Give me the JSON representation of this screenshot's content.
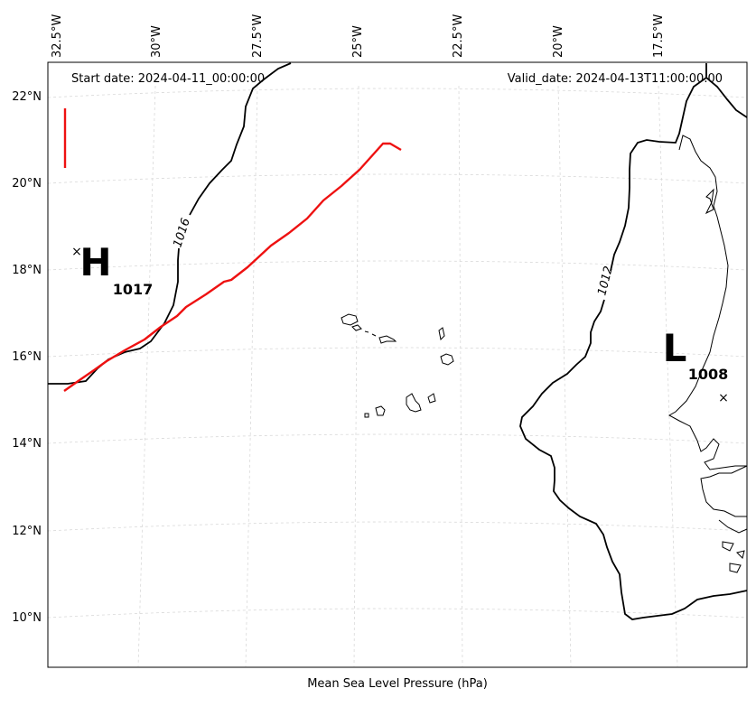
{
  "header": {
    "start_date": "Start date: 2024-04-11_00:00:00",
    "valid_date": "Valid_date: 2024-04-13T11:00:00.00"
  },
  "footer": {
    "xlabel": "Mean Sea Level Pressure (hPa)"
  },
  "axes": {
    "lon_ticks": [
      "32.5°W",
      "30°W",
      "27.5°W",
      "25°W",
      "22.5°W",
      "20°W",
      "17.5°W"
    ],
    "lat_ticks": [
      "22°N",
      "20°N",
      "18°N",
      "16°N",
      "14°N",
      "12°N",
      "10°N"
    ],
    "grid": "dashed light gray"
  },
  "pressure_systems": {
    "high": {
      "symbol": "H",
      "value": "1017"
    },
    "low": {
      "symbol": "L",
      "value": "1008"
    }
  },
  "isobars": [
    {
      "label": "1016"
    },
    {
      "label": "1012"
    }
  ],
  "colors": {
    "track": "#ee1111",
    "isobar": "#000000",
    "coast": "#000000",
    "grid": "#d9d9d9"
  }
}
